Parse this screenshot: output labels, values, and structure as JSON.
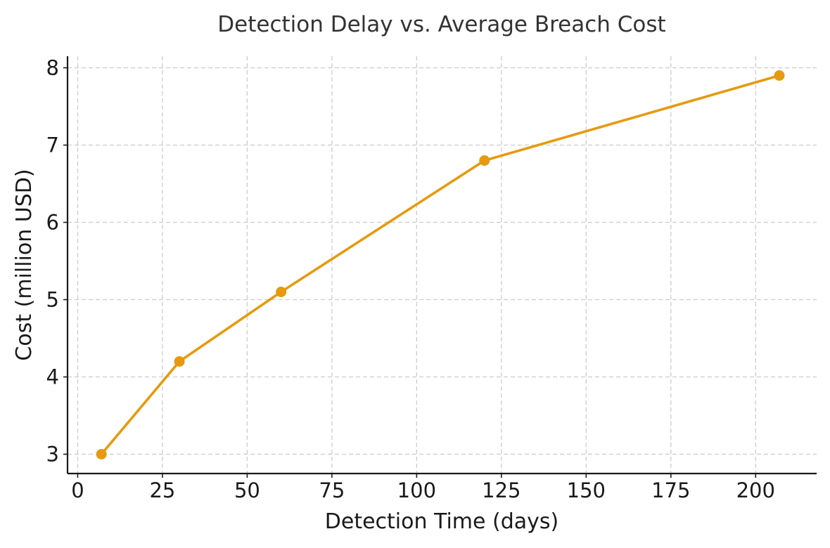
{
  "chart_data": {
    "type": "line",
    "title": "Detection Delay vs. Average Breach Cost",
    "xlabel": "Detection Time (days)",
    "ylabel": "Cost (million USD)",
    "xlim": [
      -3,
      218
    ],
    "ylim": [
      2.75,
      8.15
    ],
    "xticks": [
      0,
      25,
      50,
      75,
      100,
      125,
      150,
      175,
      200
    ],
    "yticks": [
      3,
      4,
      5,
      6,
      7,
      8
    ],
    "grid": true,
    "series": [
      {
        "x": [
          7,
          30,
          60,
          120,
          207
        ],
        "y": [
          3.0,
          4.2,
          5.1,
          6.8,
          7.9
        ],
        "color": "#E69A0F",
        "marker": "circle"
      }
    ]
  }
}
